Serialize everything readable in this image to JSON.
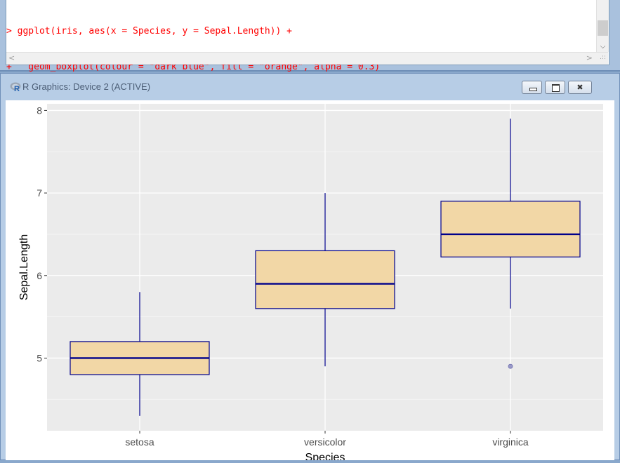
{
  "console": {
    "lines": [
      {
        "prompt": ">",
        "code": " ggplot(iris, aes(x = Species, y = Sepal.Length)) +"
      },
      {
        "prompt": "+",
        "code": "   geom_boxplot(colour = \"dark blue\", fill = \"orange\", alpha = 0.3)"
      },
      {
        "prompt": ">",
        "code": " "
      }
    ],
    "text_color": "#ff0000"
  },
  "graphics_window": {
    "title": "R Graphics: Device 2 (ACTIVE)",
    "icon": "r-logo-icon",
    "buttons": [
      "minimize",
      "maximize",
      "close"
    ]
  },
  "chart_data": {
    "type": "boxplot",
    "xlabel": "Species",
    "ylabel": "Sepal.Length",
    "categories": [
      "setosa",
      "versicolor",
      "virginica"
    ],
    "ylim": [
      4.12,
      8.08
    ],
    "yticks": [
      5,
      6,
      7,
      8
    ],
    "grid": true,
    "boxes": [
      {
        "category": "setosa",
        "min": 4.3,
        "q1": 4.8,
        "median": 5.0,
        "q3": 5.2,
        "max": 5.8,
        "outliers": []
      },
      {
        "category": "versicolor",
        "min": 4.9,
        "q1": 5.6,
        "median": 5.9,
        "q3": 6.3,
        "max": 7.0,
        "outliers": []
      },
      {
        "category": "virginica",
        "min": 5.6,
        "q1": 6.225,
        "median": 6.5,
        "q3": 6.9,
        "max": 7.9,
        "outliers": [
          4.9
        ]
      }
    ],
    "colour": "#00008b",
    "fill": "#f2d7a6",
    "panel_background": "#ebebeb"
  }
}
